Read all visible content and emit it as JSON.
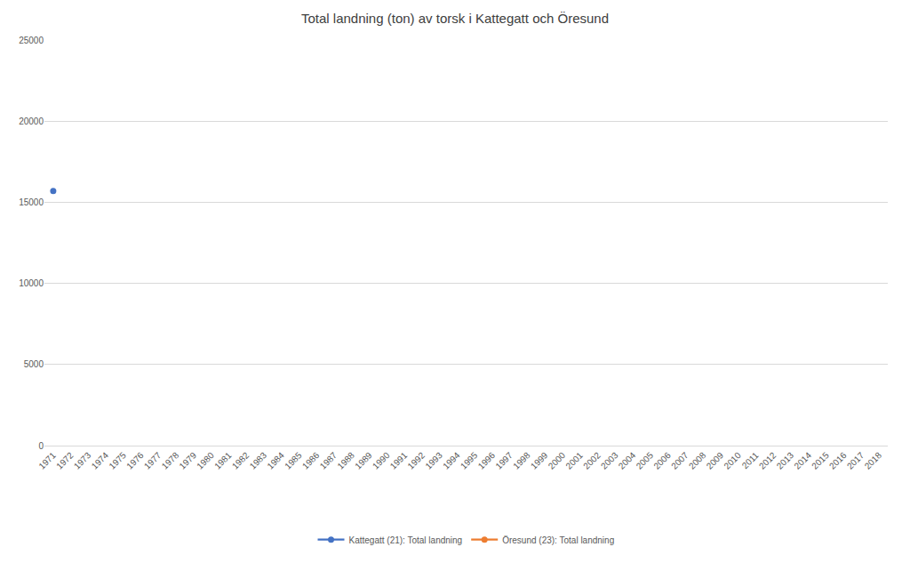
{
  "chart_data": {
    "type": "line",
    "title": "Total landning (ton) av torsk i Kattegatt och Öresund",
    "categories": [
      "1971",
      "1972",
      "1973",
      "1974",
      "1975",
      "1976",
      "1977",
      "1978",
      "1979",
      "1980",
      "1981",
      "1982",
      "1983",
      "1984",
      "1985",
      "1986",
      "1987",
      "1988",
      "1989",
      "1990",
      "1991",
      "1992",
      "1993",
      "1994",
      "1995",
      "1996",
      "1997",
      "1998",
      "1999",
      "2000",
      "2001",
      "2002",
      "2003",
      "2004",
      "2005",
      "2006",
      "2007",
      "2008",
      "2009",
      "2010",
      "2011",
      "2012",
      "2013",
      "2014",
      "2015",
      "2016",
      "2017",
      "2018"
    ],
    "series": [
      {
        "name": "Kattegatt (21): Total landning",
        "color": "#4472c4",
        "marker": "circle",
        "values": [
          15700,
          null,
          null,
          null,
          null,
          null,
          null,
          null,
          null,
          null,
          null,
          null,
          null,
          null,
          null,
          null,
          null,
          null,
          null,
          null,
          null,
          null,
          null,
          null,
          null,
          null,
          null,
          null,
          null,
          null,
          null,
          null,
          null,
          null,
          null,
          null,
          null,
          null,
          null,
          null,
          null,
          null,
          null,
          null,
          null,
          null,
          null,
          null
        ]
      },
      {
        "name": "Öresund (23): Total landning",
        "color": "#ed7d31",
        "marker": "circle",
        "values": [
          null,
          null,
          null,
          null,
          null,
          null,
          null,
          null,
          null,
          null,
          null,
          null,
          null,
          null,
          null,
          null,
          null,
          null,
          null,
          null,
          null,
          null,
          null,
          null,
          null,
          null,
          null,
          null,
          null,
          null,
          null,
          null,
          null,
          null,
          null,
          null,
          null,
          null,
          null,
          null,
          null,
          null,
          null,
          null,
          null,
          null,
          null,
          null
        ]
      }
    ],
    "ylim": [
      0,
      25000
    ],
    "yticks": [
      0,
      5000,
      10000,
      15000,
      20000,
      25000
    ],
    "grid": true,
    "legend": "bottom"
  }
}
